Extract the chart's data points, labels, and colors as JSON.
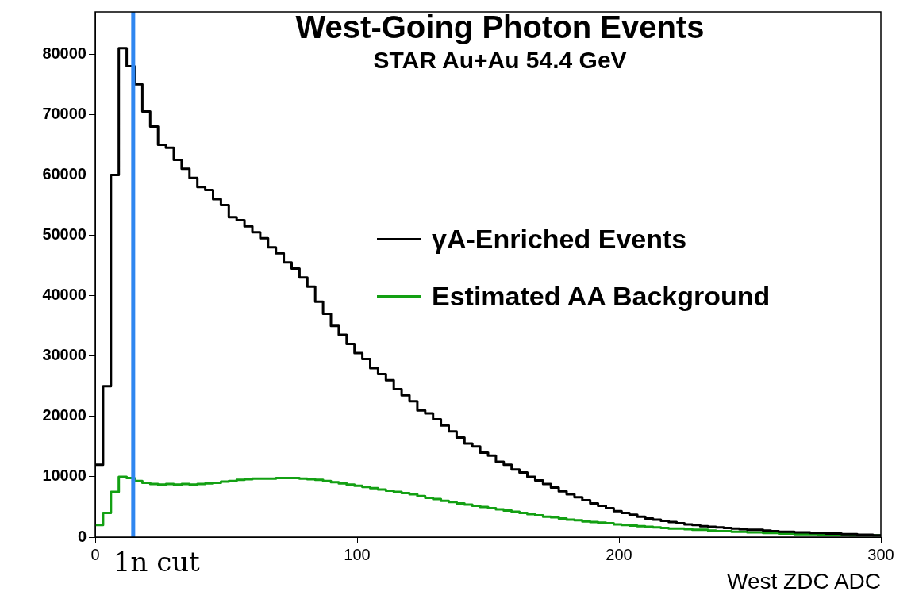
{
  "chart_data": {
    "type": "histogram",
    "title": "West-Going Photon Events",
    "subtitle": "STAR Au+Au 54.4 GeV",
    "xlabel": "West ZDC ADC",
    "bins": [
      0,
      3,
      6,
      9,
      12,
      15,
      18,
      21,
      24,
      27,
      30,
      33,
      36,
      39,
      42,
      45,
      48,
      51,
      54,
      57,
      60,
      63,
      66,
      69,
      72,
      75,
      78,
      81,
      84,
      87,
      90,
      93,
      96,
      99,
      102,
      105,
      108,
      111,
      114,
      117,
      120,
      123,
      126,
      129,
      132,
      135,
      138,
      141,
      144,
      147,
      150,
      153,
      156,
      159,
      162,
      165,
      168,
      171,
      174,
      177,
      180,
      183,
      186,
      189,
      192,
      195,
      198,
      201,
      204,
      207,
      210,
      213,
      216,
      219,
      222,
      225,
      228,
      231,
      234,
      237,
      240,
      243,
      246,
      249,
      252,
      255,
      258,
      261,
      264,
      267,
      270,
      273,
      276,
      279,
      282,
      285,
      288,
      291,
      294,
      297,
      300
    ],
    "series": [
      {
        "name": "γA-Enriched Events",
        "color": "#000000",
        "values": [
          12000,
          25000,
          60000,
          81000,
          78000,
          75000,
          70500,
          68000,
          65000,
          64500,
          62500,
          61000,
          59500,
          58000,
          57500,
          56000,
          55000,
          53000,
          52500,
          51500,
          50500,
          49500,
          48000,
          47000,
          45500,
          44500,
          43000,
          41500,
          39000,
          37000,
          35000,
          33500,
          32000,
          30500,
          29500,
          28000,
          27000,
          26000,
          24500,
          23500,
          22500,
          21000,
          20500,
          19500,
          18500,
          17500,
          16500,
          15500,
          15000,
          14000,
          13500,
          12500,
          12000,
          11200,
          10700,
          10000,
          9400,
          8800,
          8200,
          7600,
          7100,
          6600,
          6100,
          5600,
          5200,
          4800,
          4300,
          4000,
          3700,
          3400,
          3100,
          2900,
          2700,
          2500,
          2300,
          2100,
          2000,
          1800,
          1700,
          1600,
          1500,
          1400,
          1300,
          1200,
          1200,
          1100,
          1000,
          900,
          900,
          800,
          800,
          700,
          700,
          600,
          600,
          500,
          500,
          400,
          400,
          300
        ]
      },
      {
        "name": "Estimated AA Background",
        "color": "#13a013",
        "values": [
          2000,
          4000,
          7500,
          10000,
          9800,
          9300,
          9000,
          8800,
          8700,
          8800,
          8700,
          8800,
          8700,
          8800,
          8900,
          9000,
          9200,
          9300,
          9500,
          9600,
          9700,
          9700,
          9700,
          9800,
          9800,
          9800,
          9700,
          9600,
          9500,
          9300,
          9100,
          8900,
          8700,
          8500,
          8300,
          8100,
          7900,
          7700,
          7500,
          7300,
          7100,
          6800,
          6500,
          6300,
          6000,
          5800,
          5600,
          5400,
          5200,
          5000,
          4800,
          4600,
          4400,
          4200,
          4000,
          3800,
          3600,
          3400,
          3300,
          3100,
          2900,
          2800,
          2600,
          2500,
          2400,
          2300,
          2100,
          2000,
          1900,
          1800,
          1700,
          1600,
          1500,
          1400,
          1400,
          1300,
          1200,
          1200,
          1100,
          1000,
          1000,
          900,
          900,
          800,
          800,
          700,
          700,
          600,
          600,
          500,
          500,
          500,
          400,
          400,
          400,
          400,
          300,
          300,
          300,
          300
        ]
      }
    ],
    "xlim": [
      0,
      300
    ],
    "xticks": [
      0,
      100,
      200,
      300
    ],
    "ylim": [
      0,
      87000
    ],
    "yticks": [
      0,
      10000,
      20000,
      30000,
      40000,
      50000,
      60000,
      70000,
      80000
    ],
    "ref_lines": [
      {
        "axis": "x",
        "value": 14.5,
        "label": "1n cut",
        "color": "#2f86f0"
      }
    ],
    "legend": "right"
  }
}
